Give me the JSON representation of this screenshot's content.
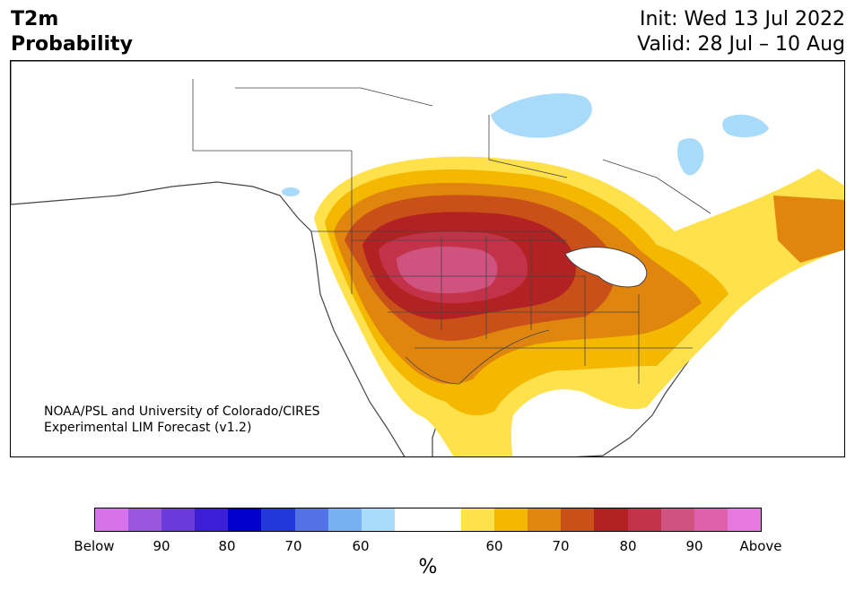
{
  "header": {
    "title_line1": "T2m",
    "title_line2": "Probability",
    "init": "Init: Wed 13 Jul 2022",
    "valid": "Valid: 28 Jul – 10 Aug"
  },
  "map": {
    "credit_line1": "NOAA/PSL and University of Colorado/CIRES",
    "credit_line2": "Experimental LIM Forecast (v1.2)",
    "region": "North America",
    "colors": {
      "ocean": "#ffffff",
      "coast": "#444444",
      "above_60": "#ffe14b",
      "above_65": "#f4b800",
      "above_70": "#e0860e",
      "above_75": "#c95018",
      "above_80": "#b22222",
      "above_85": "#c2334a",
      "above_90": "#d0527e",
      "below_60": "#a8dafa"
    }
  },
  "colorbar": {
    "colors": [
      "#d673ea",
      "#9b56e0",
      "#6a3bd8",
      "#3b1ed6",
      "#0000cc",
      "#2338d9",
      "#5272e6",
      "#77b0f3",
      "#a8dafa",
      "#ffffff",
      "#ffffff",
      "#ffe14b",
      "#f4b800",
      "#e0860e",
      "#c95018",
      "#b22222",
      "#c2334a",
      "#d0527e",
      "#df61ad",
      "#e678de"
    ],
    "tick_labels": [
      "Below",
      "90",
      "80",
      "70",
      "60",
      "60",
      "70",
      "80",
      "90",
      "Above"
    ],
    "unit": "%"
  }
}
